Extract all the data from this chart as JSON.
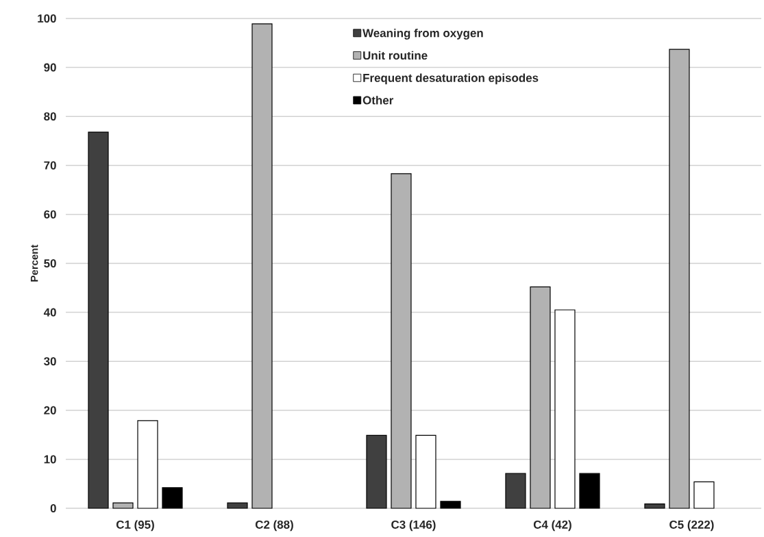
{
  "chart_data": {
    "type": "bar",
    "ylabel": "Percent",
    "categories": [
      "C1 (95)",
      "C2 (88)",
      "C3 (146)",
      "C4 (42)",
      "C5 (222)"
    ],
    "series": [
      {
        "name": "Weaning from oxygen",
        "color": "#404040",
        "values": [
          76.8,
          1.1,
          14.9,
          7.1,
          0.9
        ]
      },
      {
        "name": "Unit routine",
        "color": "#b2b2b2",
        "values": [
          1.1,
          98.9,
          68.3,
          45.2,
          93.7
        ]
      },
      {
        "name": "Frequent desaturation episodes",
        "color": "#ffffff",
        "values": [
          17.9,
          null,
          14.9,
          40.5,
          5.4
        ]
      },
      {
        "name": "Other",
        "color": "#000000",
        "values": [
          4.2,
          null,
          1.4,
          7.1,
          null
        ]
      }
    ],
    "ylim": [
      0,
      100
    ],
    "yticks": [
      0,
      10,
      20,
      30,
      40,
      50,
      60,
      70,
      80,
      90,
      100
    ],
    "grid": "y",
    "legend": "top"
  }
}
